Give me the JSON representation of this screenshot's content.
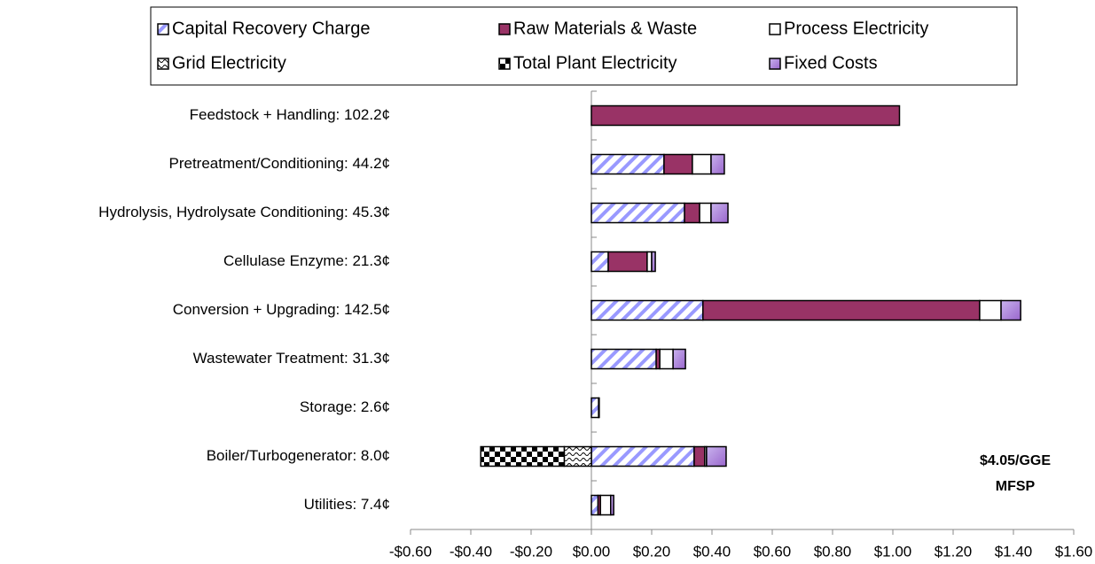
{
  "chart_data": {
    "type": "stacked-barh",
    "categories": [
      "Feedstock + Handling: 102.2¢",
      "Pretreatment/Conditioning: 44.2¢",
      "Hydrolysis, Hydrolysate Conditioning: 45.3¢",
      "Cellulase Enzyme: 21.3¢",
      "Conversion + Upgrading: 142.5¢",
      "Wastewater Treatment: 31.3¢",
      "Storage: 2.6¢",
      "Boiler/Turbogenerator: 8.0¢",
      "Utilities: 7.4¢"
    ],
    "series": [
      {
        "name": "Capital Recovery Charge",
        "color": "#9999ff",
        "pattern": "hatch",
        "values": [
          null,
          0.241,
          0.309,
          0.056,
          0.37,
          0.215,
          0.024,
          0.341,
          0.022
        ]
      },
      {
        "name": "Raw Materials & Waste",
        "color": "#993366",
        "pattern": "solid",
        "values": [
          1.022,
          0.094,
          0.05,
          0.129,
          0.918,
          0.012,
          null,
          0.035,
          0.008
        ]
      },
      {
        "name": "Process Electricity",
        "color": "#ffffff",
        "pattern": "solid",
        "values": [
          null,
          0.062,
          0.038,
          0.015,
          0.071,
          0.044,
          0.002,
          0.006,
          0.034
        ]
      },
      {
        "name": "Grid Electricity",
        "color": "#000000",
        "pattern": "wave",
        "values": [
          null,
          null,
          null,
          null,
          null,
          null,
          null,
          -0.09,
          null
        ]
      },
      {
        "name": "Total Plant Electricity",
        "color": "#000000",
        "pattern": "checker",
        "values": [
          null,
          null,
          null,
          null,
          null,
          null,
          null,
          -0.277,
          null
        ]
      },
      {
        "name": "Fixed Costs",
        "color": "#9966cc",
        "pattern": "solid",
        "values": [
          null,
          0.044,
          0.056,
          0.012,
          0.065,
          0.041,
          null,
          0.065,
          0.01
        ]
      }
    ],
    "xlim": [
      -0.6,
      1.6
    ],
    "xticks": [
      {
        "value": -0.6,
        "label": "-$0.60"
      },
      {
        "value": -0.4,
        "label": "-$0.40"
      },
      {
        "value": -0.2,
        "label": "-$0.20"
      },
      {
        "value": 0,
        "label": "$0.00"
      },
      {
        "value": 0.2,
        "label": "$0.20"
      },
      {
        "value": 0.4,
        "label": "$0.40"
      },
      {
        "value": 0.6,
        "label": "$0.60"
      },
      {
        "value": 0.8,
        "label": "$0.80"
      },
      {
        "value": 1.0,
        "label": "$1.00"
      },
      {
        "value": 1.2,
        "label": "$1.20"
      },
      {
        "value": 1.4,
        "label": "$1.40"
      },
      {
        "value": 1.6,
        "label": "$1.60"
      }
    ],
    "annotations": [
      "$4.05/GGE",
      "MFSP"
    ],
    "legend": "top",
    "grid": false
  }
}
